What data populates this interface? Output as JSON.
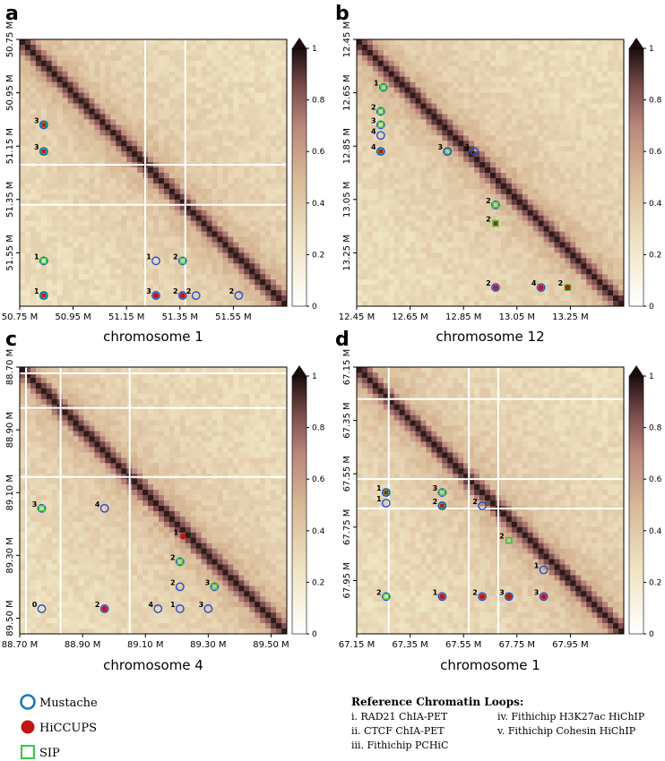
{
  "colors": {
    "mustache": "#1f4fd6",
    "mustache_legend": "#1f77b4",
    "hiccups": "#c41414",
    "sip": "#2ecc40",
    "map_bg": "#e4cfa6",
    "diagonal": "#1e0f0f"
  },
  "colorbar": {
    "ticks": [
      "0",
      "0.2",
      "0.4",
      "0.6",
      "0.8",
      "1"
    ]
  },
  "chart_data": [
    {
      "type": "heatmap",
      "panel": "a",
      "xlabel": "chromosome 1",
      "range": [
        50.75,
        51.75
      ],
      "x_ticks": [
        "50.75 M",
        "50.95 M",
        "51.15 M",
        "51.35 M",
        "51.55 M"
      ],
      "y_ticks": [
        "50.75 M",
        "50.95 M",
        "51.15 M",
        "51.35 M",
        "51.55 M"
      ],
      "white_lines": [
        51.22,
        51.37
      ],
      "markers": [
        {
          "x": 50.84,
          "y": 51.07,
          "label": "3",
          "types": [
            "hiccups",
            "sip",
            "mustache"
          ]
        },
        {
          "x": 50.84,
          "y": 51.17,
          "label": "3",
          "types": [
            "hiccups",
            "sip",
            "mustache"
          ]
        },
        {
          "x": 50.84,
          "y": 51.58,
          "label": "1",
          "types": [
            "mustache",
            "sip"
          ]
        },
        {
          "x": 50.84,
          "y": 51.71,
          "label": "1",
          "types": [
            "hiccups",
            "sip",
            "mustache"
          ]
        },
        {
          "x": 51.26,
          "y": 51.58,
          "label": "1",
          "types": [
            "mustache"
          ]
        },
        {
          "x": 51.36,
          "y": 51.58,
          "label": "2",
          "types": [
            "mustache",
            "sip"
          ]
        },
        {
          "x": 51.26,
          "y": 51.71,
          "label": "3",
          "types": [
            "hiccups",
            "mustache"
          ]
        },
        {
          "x": 51.36,
          "y": 51.71,
          "label": "2",
          "types": [
            "hiccups",
            "mustache"
          ]
        },
        {
          "x": 51.41,
          "y": 51.71,
          "label": "2",
          "types": [
            "mustache"
          ]
        },
        {
          "x": 51.57,
          "y": 51.71,
          "label": "2",
          "types": [
            "mustache"
          ]
        }
      ]
    },
    {
      "type": "heatmap",
      "panel": "b",
      "xlabel": "chromosome 12",
      "range": [
        12.45,
        13.45
      ],
      "x_ticks": [
        "12.45 M",
        "12.65 M",
        "12.85 M",
        "13.05 M",
        "13.25 M"
      ],
      "y_ticks": [
        "12.45 M",
        "12.65 M",
        "12.85 M",
        "13.05 M",
        "13.25 M"
      ],
      "white_lines": [],
      "markers": [
        {
          "x": 12.55,
          "y": 12.63,
          "label": "1",
          "types": [
            "mustache",
            "sip"
          ]
        },
        {
          "x": 12.54,
          "y": 12.72,
          "label": "2",
          "types": [
            "mustache",
            "sip"
          ]
        },
        {
          "x": 12.54,
          "y": 12.77,
          "label": "3",
          "types": [
            "mustache",
            "sip"
          ]
        },
        {
          "x": 12.54,
          "y": 12.81,
          "label": "4",
          "types": [
            "mustache"
          ]
        },
        {
          "x": 12.54,
          "y": 12.87,
          "label": "4",
          "types": [
            "hiccups",
            "sip",
            "mustache"
          ]
        },
        {
          "x": 12.79,
          "y": 12.87,
          "label": "3",
          "types": [
            "sip",
            "mustache"
          ]
        },
        {
          "x": 12.89,
          "y": 12.87,
          "label": "3",
          "types": [
            "mustache"
          ]
        },
        {
          "x": 12.97,
          "y": 13.07,
          "label": "2",
          "types": [
            "mustache",
            "sip"
          ]
        },
        {
          "x": 12.97,
          "y": 13.14,
          "label": "2",
          "types": [
            "hiccups",
            "sip"
          ]
        },
        {
          "x": 12.97,
          "y": 13.38,
          "label": "2",
          "types": [
            "hiccups",
            "mustache"
          ]
        },
        {
          "x": 13.14,
          "y": 13.38,
          "label": "4",
          "types": [
            "hiccups",
            "mustache"
          ]
        },
        {
          "x": 13.24,
          "y": 13.38,
          "label": "2",
          "types": [
            "sip",
            "hiccups"
          ]
        }
      ]
    },
    {
      "type": "heatmap",
      "panel": "c",
      "xlabel": "chromosome 4",
      "range": [
        88.7,
        89.55
      ],
      "x_ticks": [
        "88.70 M",
        "88.90 M",
        "89.10 M",
        "89.30 M",
        "89.50 M"
      ],
      "y_ticks": [
        "88.70 M",
        "88.90 M",
        "89.10 M",
        "89.30 M",
        "89.50 M"
      ],
      "white_lines": [
        88.72,
        88.83,
        89.05
      ],
      "markers": [
        {
          "x": 88.77,
          "y": 89.15,
          "label": "3",
          "types": [
            "mustache",
            "sip"
          ]
        },
        {
          "x": 88.97,
          "y": 89.15,
          "label": "4",
          "types": [
            "mustache"
          ]
        },
        {
          "x": 89.22,
          "y": 89.24,
          "label": "1",
          "types": [
            "hiccups"
          ]
        },
        {
          "x": 89.21,
          "y": 89.32,
          "label": "2",
          "types": [
            "mustache",
            "sip"
          ]
        },
        {
          "x": 89.21,
          "y": 89.4,
          "label": "2",
          "types": [
            "mustache"
          ]
        },
        {
          "x": 89.32,
          "y": 89.4,
          "label": "3",
          "types": [
            "mustache",
            "sip"
          ]
        },
        {
          "x": 88.77,
          "y": 89.47,
          "label": "0",
          "types": [
            "mustache"
          ]
        },
        {
          "x": 88.97,
          "y": 89.47,
          "label": "2",
          "types": [
            "hiccups",
            "mustache"
          ]
        },
        {
          "x": 89.14,
          "y": 89.47,
          "label": "4",
          "types": [
            "mustache"
          ]
        },
        {
          "x": 89.21,
          "y": 89.47,
          "label": "1",
          "types": [
            "mustache"
          ]
        },
        {
          "x": 89.3,
          "y": 89.47,
          "label": "3",
          "types": [
            "mustache"
          ]
        }
      ]
    },
    {
      "type": "heatmap",
      "panel": "d",
      "xlabel": "chromosome 1",
      "range": [
        67.15,
        68.15
      ],
      "x_ticks": [
        "67.15 M",
        "67.35 M",
        "67.55 M",
        "67.75 M",
        "67.95 M"
      ],
      "y_ticks": [
        "67.15 M",
        "67.35 M",
        "67.55 M",
        "67.75 M",
        "67.95 M"
      ],
      "white_lines": [
        67.27,
        67.57,
        67.68
      ],
      "markers": [
        {
          "x": 67.26,
          "y": 67.62,
          "label": "1",
          "types": [
            "hiccups",
            "sip",
            "mustache"
          ]
        },
        {
          "x": 67.26,
          "y": 67.66,
          "label": "1",
          "types": [
            "mustache"
          ]
        },
        {
          "x": 67.47,
          "y": 67.62,
          "label": "3",
          "types": [
            "mustache",
            "sip"
          ]
        },
        {
          "x": 67.47,
          "y": 67.67,
          "label": "2",
          "types": [
            "hiccups",
            "sip",
            "mustache"
          ]
        },
        {
          "x": 67.62,
          "y": 67.67,
          "label": "2",
          "types": [
            "mustache"
          ]
        },
        {
          "x": 67.72,
          "y": 67.8,
          "label": "2",
          "types": [
            "sip"
          ]
        },
        {
          "x": 67.85,
          "y": 67.91,
          "label": "1",
          "types": [
            "mustache"
          ]
        },
        {
          "x": 67.26,
          "y": 68.01,
          "label": "2",
          "types": [
            "mustache",
            "sip"
          ]
        },
        {
          "x": 67.47,
          "y": 68.01,
          "label": "1",
          "types": [
            "hiccups",
            "mustache"
          ]
        },
        {
          "x": 67.62,
          "y": 68.01,
          "label": "2",
          "types": [
            "hiccups",
            "mustache"
          ]
        },
        {
          "x": 67.72,
          "y": 68.01,
          "label": "3",
          "types": [
            "sip",
            "hiccups",
            "mustache"
          ]
        },
        {
          "x": 67.85,
          "y": 68.01,
          "label": "3",
          "types": [
            "hiccups",
            "mustache"
          ]
        }
      ]
    }
  ],
  "legend": {
    "items": [
      {
        "label": "Mustache",
        "shape": "circle-outline"
      },
      {
        "label": "HiCCUPS",
        "shape": "circle-filled"
      },
      {
        "label": "SIP",
        "shape": "square-outline"
      }
    ]
  },
  "reference": {
    "title": "Reference Chromatin Loops",
    "col1": [
      "i.   RAD21 ChIA-PET",
      "ii.  CTCF ChIA-PET",
      "iii. Fithichip PCHiC"
    ],
    "col2": [
      "iv.  Fithichip H3K27ac HiChIP",
      "v.   Fithichip Cohesin HiChIP"
    ]
  }
}
